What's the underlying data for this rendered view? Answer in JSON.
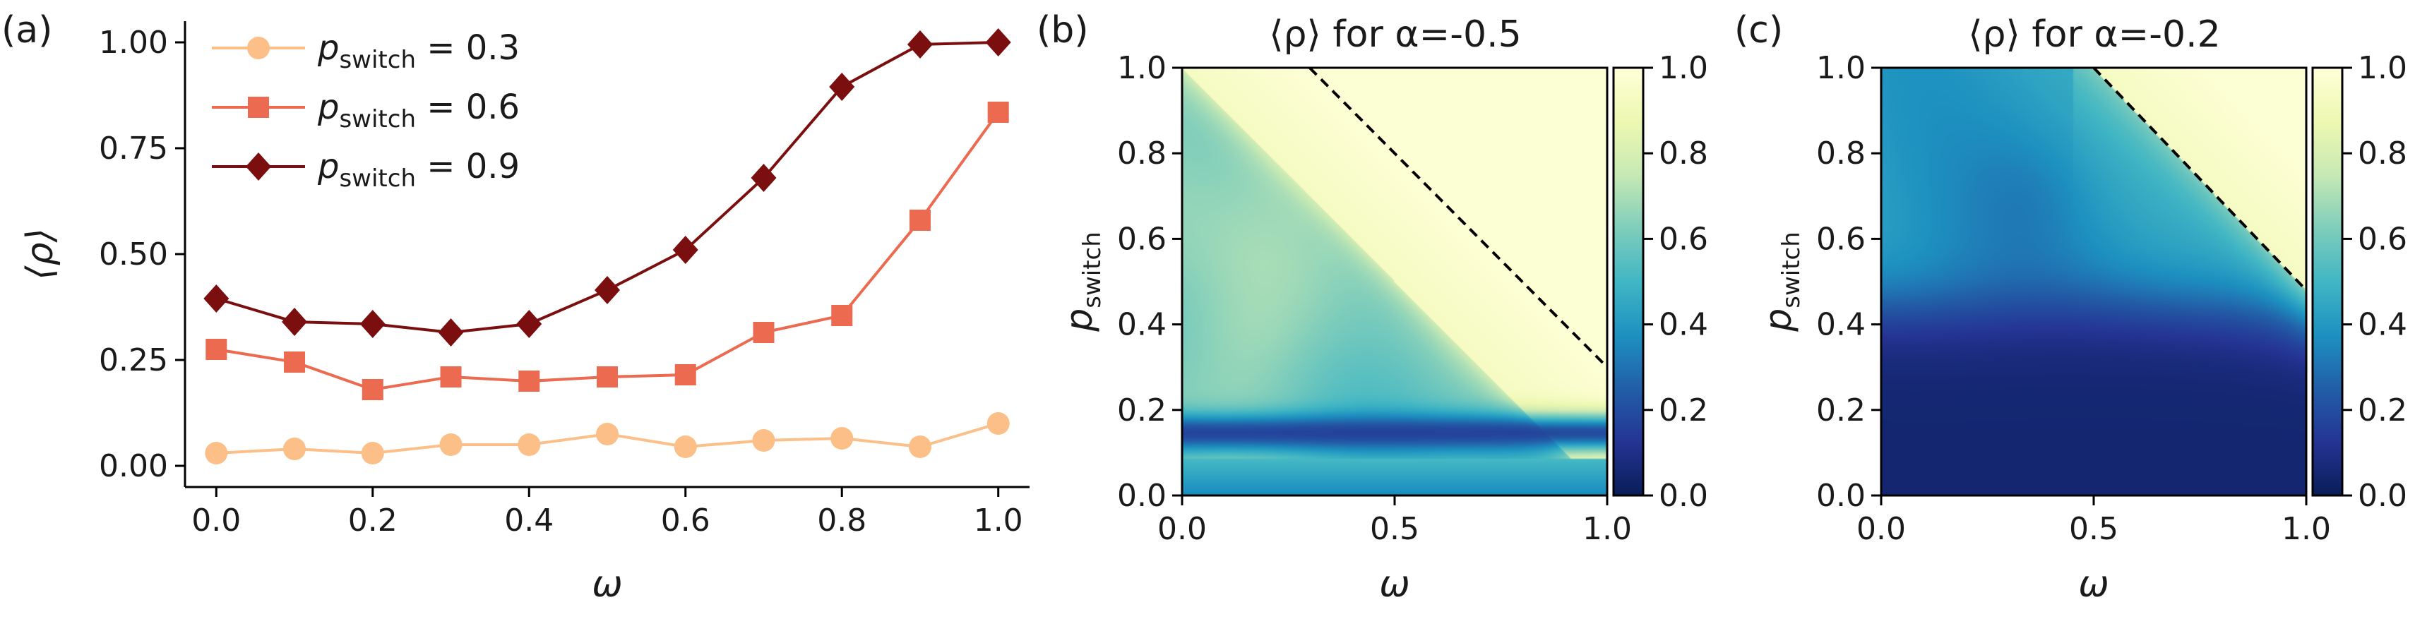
{
  "chart_data": [
    {
      "panel": "(a)",
      "type": "line",
      "title": "",
      "xlabel": "ω",
      "ylabel": "⟨ρ⟩",
      "xlim": [
        -0.04,
        1.04
      ],
      "ylim": [
        -0.05,
        1.05
      ],
      "xticks": [
        0.0,
        0.2,
        0.4,
        0.6,
        0.8,
        1.0
      ],
      "xtick_labels": [
        "0.0",
        "0.2",
        "0.4",
        "0.6",
        "0.8",
        "1.0"
      ],
      "yticks": [
        0.0,
        0.25,
        0.5,
        0.75,
        1.0
      ],
      "ytick_labels": [
        "0.00",
        "0.25",
        "0.50",
        "0.75",
        "1.00"
      ],
      "legend_position": "top-left",
      "x": [
        0.0,
        0.1,
        0.2,
        0.3,
        0.4,
        0.5,
        0.6,
        0.7,
        0.8,
        0.9,
        1.0
      ],
      "series": [
        {
          "name": "p_switch = 0.3",
          "name_base": "p",
          "name_sub": "switch",
          "name_rest": " = 0.3",
          "marker": "circle",
          "color": "#fbbf87",
          "values": [
            0.03,
            0.04,
            0.03,
            0.05,
            0.05,
            0.075,
            0.045,
            0.06,
            0.065,
            0.045,
            0.1
          ]
        },
        {
          "name": "p_switch = 0.6",
          "name_base": "p",
          "name_sub": "switch",
          "name_rest": " = 0.6",
          "marker": "square",
          "color": "#ec6a50",
          "values": [
            0.275,
            0.245,
            0.18,
            0.21,
            0.2,
            0.21,
            0.215,
            0.315,
            0.355,
            0.58,
            0.835
          ]
        },
        {
          "name": "p_switch = 0.9",
          "name_base": "p",
          "name_sub": "switch",
          "name_rest": " = 0.9",
          "marker": "diamond",
          "color": "#7b0f0f",
          "values": [
            0.395,
            0.34,
            0.335,
            0.315,
            0.335,
            0.415,
            0.51,
            0.68,
            0.895,
            0.995,
            1.0
          ]
        }
      ]
    },
    {
      "panel": "(b)",
      "type": "heatmap",
      "title": "⟨ρ⟩ for α=-0.5",
      "xlabel": "ω",
      "ylabel": "p_switch",
      "ylabel_base": "p",
      "ylabel_sub": "switch",
      "alpha": -0.5,
      "xlim": [
        0.0,
        1.0
      ],
      "ylim": [
        0.0,
        1.0
      ],
      "xticks": [
        0.0,
        0.5,
        1.0
      ],
      "xtick_labels": [
        "0.0",
        "0.5",
        "1.0"
      ],
      "yticks": [
        0.0,
        0.2,
        0.4,
        0.6,
        0.8,
        1.0
      ],
      "ytick_labels": [
        "0.0",
        "0.2",
        "0.4",
        "0.6",
        "0.8",
        "1.0"
      ],
      "colorbar": {
        "range": [
          0.0,
          1.0
        ],
        "ticks": [
          "0.0",
          "0.2",
          "0.4",
          "0.6",
          "0.8",
          "1.0"
        ],
        "colormap": "YlGnBu_r"
      },
      "dashed_line": {
        "from": [
          0.3,
          1.0
        ],
        "to": [
          1.0,
          0.3
        ]
      }
    },
    {
      "panel": "(c)",
      "type": "heatmap",
      "title": "⟨ρ⟩ for α=-0.2",
      "xlabel": "ω",
      "ylabel": "p_switch",
      "ylabel_base": "p",
      "ylabel_sub": "switch",
      "alpha": -0.2,
      "xlim": [
        0.0,
        1.0
      ],
      "ylim": [
        0.0,
        1.0
      ],
      "xticks": [
        0.0,
        0.5,
        1.0
      ],
      "xtick_labels": [
        "0.0",
        "0.5",
        "1.0"
      ],
      "yticks": [
        0.0,
        0.2,
        0.4,
        0.6,
        0.8,
        1.0
      ],
      "ytick_labels": [
        "0.0",
        "0.2",
        "0.4",
        "0.6",
        "0.8",
        "1.0"
      ],
      "colorbar": {
        "range": [
          0.0,
          1.0
        ],
        "ticks": [
          "0.0",
          "0.2",
          "0.4",
          "0.6",
          "0.8",
          "1.0"
        ],
        "colormap": "YlGnBu_r"
      },
      "dashed_line": {
        "from": [
          0.5,
          1.0
        ],
        "to": [
          1.0,
          0.48
        ]
      }
    }
  ]
}
